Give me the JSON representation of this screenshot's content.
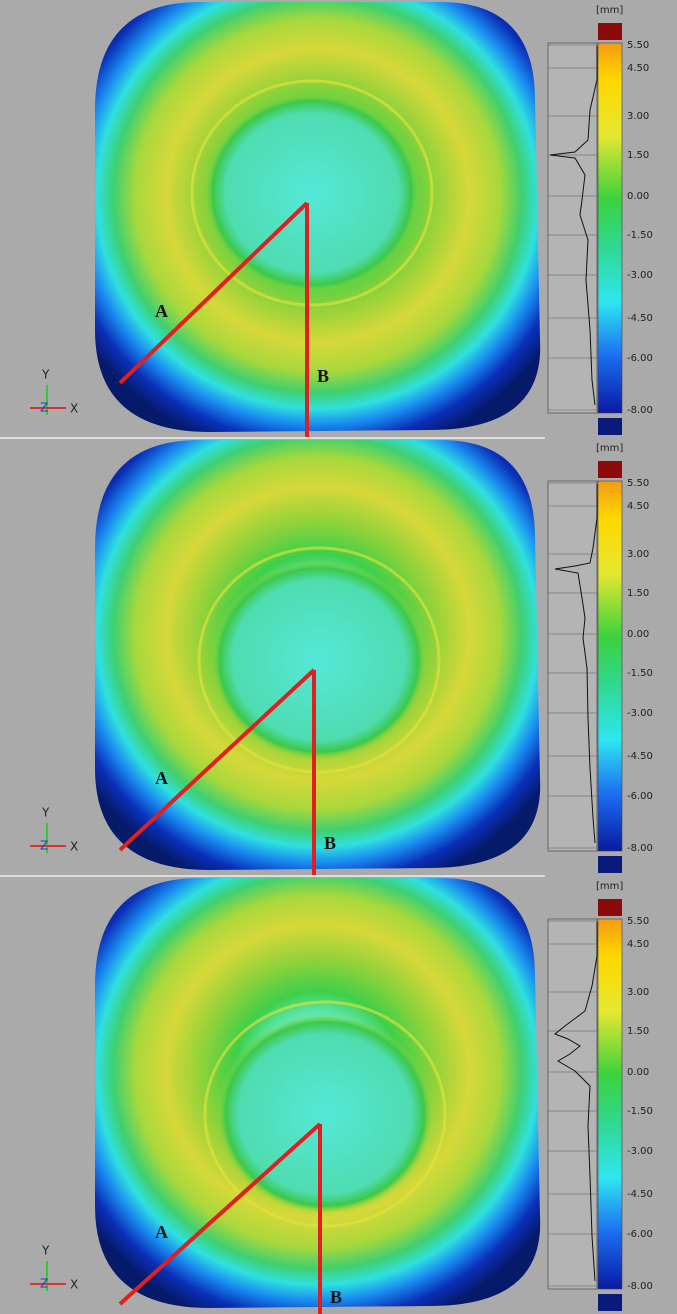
{
  "panels": [
    {
      "unit": "[mm]",
      "scale_labels": [
        "5.50",
        "4.50",
        "3.00",
        "1.50",
        "0.00",
        "-1.50",
        "-3.00",
        "-4.50",
        "-6.00",
        "-8.00"
      ],
      "line_labels": [
        "A",
        "B"
      ],
      "axis_labels": [
        "Y",
        "Z",
        "X"
      ]
    },
    {
      "unit": "[mm]",
      "scale_labels": [
        "5.50",
        "4.50",
        "3.00",
        "1.50",
        "0.00",
        "-1.50",
        "-3.00",
        "-4.50",
        "-6.00",
        "-8.00"
      ],
      "line_labels": [
        "A",
        "B"
      ],
      "axis_labels": [
        "Y",
        "Z",
        "X"
      ]
    },
    {
      "unit": "[mm]",
      "scale_labels": [
        "5.50",
        "4.50",
        "3.00",
        "1.50",
        "0.00",
        "-1.50",
        "-3.00",
        "-4.50",
        "-6.00",
        "-8.00"
      ],
      "line_labels": [
        "A",
        "B"
      ],
      "axis_labels": [
        "Y",
        "Z",
        "X"
      ]
    }
  ]
}
